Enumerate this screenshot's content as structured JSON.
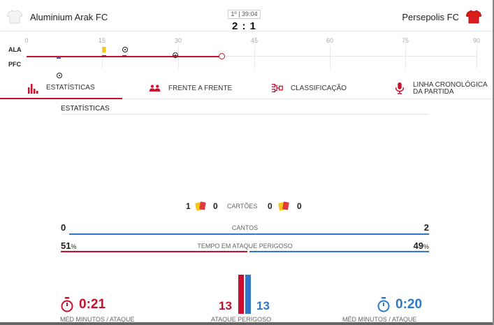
{
  "header": {
    "home_team": "Aluminium Arak FC",
    "away_team": "Persepolis FC",
    "clock": "1º | 39:04",
    "score": "2 : 1",
    "home_kit_color": "#f4f4f4",
    "away_kit_color": "#d91c1c"
  },
  "timeline": {
    "home_abbr": "ALA",
    "away_abbr": "PFC",
    "ticks": [
      "0",
      "15",
      "30",
      "45",
      "60",
      "75",
      "90"
    ],
    "current_minute": 39
  },
  "tabs": [
    {
      "label": "ESTATÍSTICAS",
      "icon": "bar-chart-icon"
    },
    {
      "label": "FRENTE A FRENTE",
      "icon": "users-icon"
    },
    {
      "label": "CLASSIFICAÇÃO",
      "icon": "bracket-icon"
    },
    {
      "label": "LINHA CRONOLÓGICA DA PARTIDA",
      "icon": "microphone-icon"
    }
  ],
  "stats": {
    "section_title": "ESTATÍSTICAS",
    "cards": {
      "label": "CARTÕES",
      "home_yellow": "1",
      "home_red": "0",
      "away_yellow": "0",
      "away_red": "0"
    },
    "corners": {
      "label": "CANTOS",
      "home": "0",
      "away": "2",
      "home_share": 0,
      "away_share": 1
    },
    "dangerous_time": {
      "label": "TEMPO EM ATAQUE PERIGOSO",
      "home": "51",
      "away": "49",
      "unit": "%",
      "home_share": 0.51,
      "away_share": 0.49
    },
    "avg_minutes": {
      "label": "MÉD MINUTOS / ATAQUE",
      "home": "0:21",
      "away": "0:20"
    },
    "dangerous_attacks": {
      "label": "ATAQUE PERIGOSO",
      "home": "13",
      "away": "13"
    }
  },
  "colors": {
    "home": "#c8102e",
    "away": "#2f78c9"
  }
}
